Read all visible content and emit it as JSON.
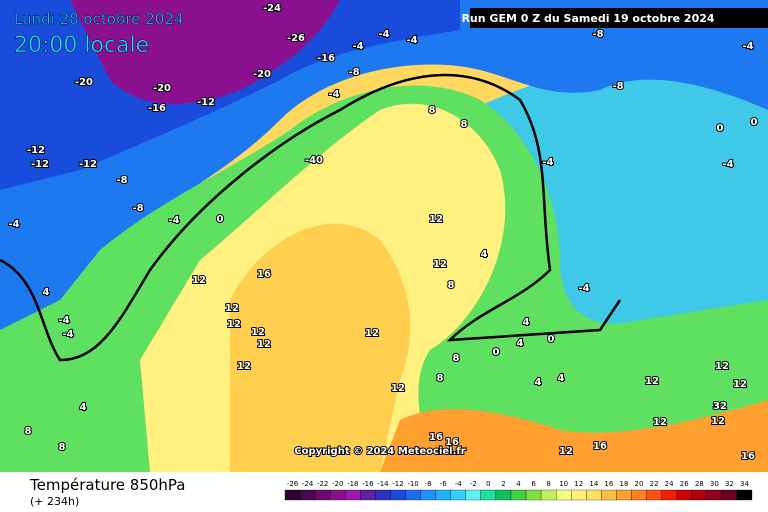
{
  "header": {
    "date": "Lundi 28 octobre 2024",
    "time": "20:00 locale",
    "run": "Run GEM 0 Z du Samedi 19 octobre 2024"
  },
  "copyright": "Copyright © 2024 Meteociel.fr",
  "footer": {
    "title": "Température 850hPa",
    "lead": "(+ 234h)"
  },
  "legend": {
    "values": [
      -26,
      -24,
      -22,
      -20,
      -18,
      -16,
      -14,
      -12,
      -10,
      -8,
      -6,
      -4,
      -2,
      0,
      2,
      4,
      6,
      8,
      10,
      12,
      14,
      16,
      18,
      20,
      22,
      24,
      26,
      28,
      30,
      32,
      34
    ],
    "colors": [
      "#2d0030",
      "#4b0650",
      "#6a0a70",
      "#8a1090",
      "#a015b0",
      "#6020a0",
      "#3030c0",
      "#1a4cdc",
      "#1e6cf0",
      "#2090ff",
      "#20b0ff",
      "#30d0ff",
      "#60f0f0",
      "#20e0a0",
      "#10c060",
      "#40d040",
      "#80e040",
      "#c0f060",
      "#f0ff80",
      "#fff080",
      "#ffe060",
      "#ffc040",
      "#ffa030",
      "#ff8020",
      "#ff5010",
      "#f02000",
      "#d00000",
      "#b00010",
      "#900020",
      "#700020",
      "#000000"
    ]
  },
  "labels": [
    "-24",
    "-26",
    "-4",
    "-4",
    "-4",
    "-8",
    "-4",
    "-20",
    "-20",
    "-20",
    "-16",
    "-8",
    "-12",
    "-16",
    "-4",
    "-8",
    "-12",
    "-12",
    "-12",
    "-40",
    "8",
    "8",
    "0",
    "0",
    "-8",
    "-8",
    "-4",
    "0",
    "-4",
    "-4",
    "-4",
    "12",
    "12",
    "4",
    "12",
    "16",
    "12",
    "12",
    "12",
    "12",
    "12",
    "4",
    "-4",
    "-4",
    "8",
    "-4",
    "0",
    "4",
    "4",
    "0",
    "8",
    "12",
    "8",
    "4",
    "4",
    "12",
    "4",
    "8",
    "8",
    "16",
    "16",
    "16",
    "12",
    "12",
    "32",
    "12",
    "12",
    "12",
    "16",
    "12"
  ]
}
